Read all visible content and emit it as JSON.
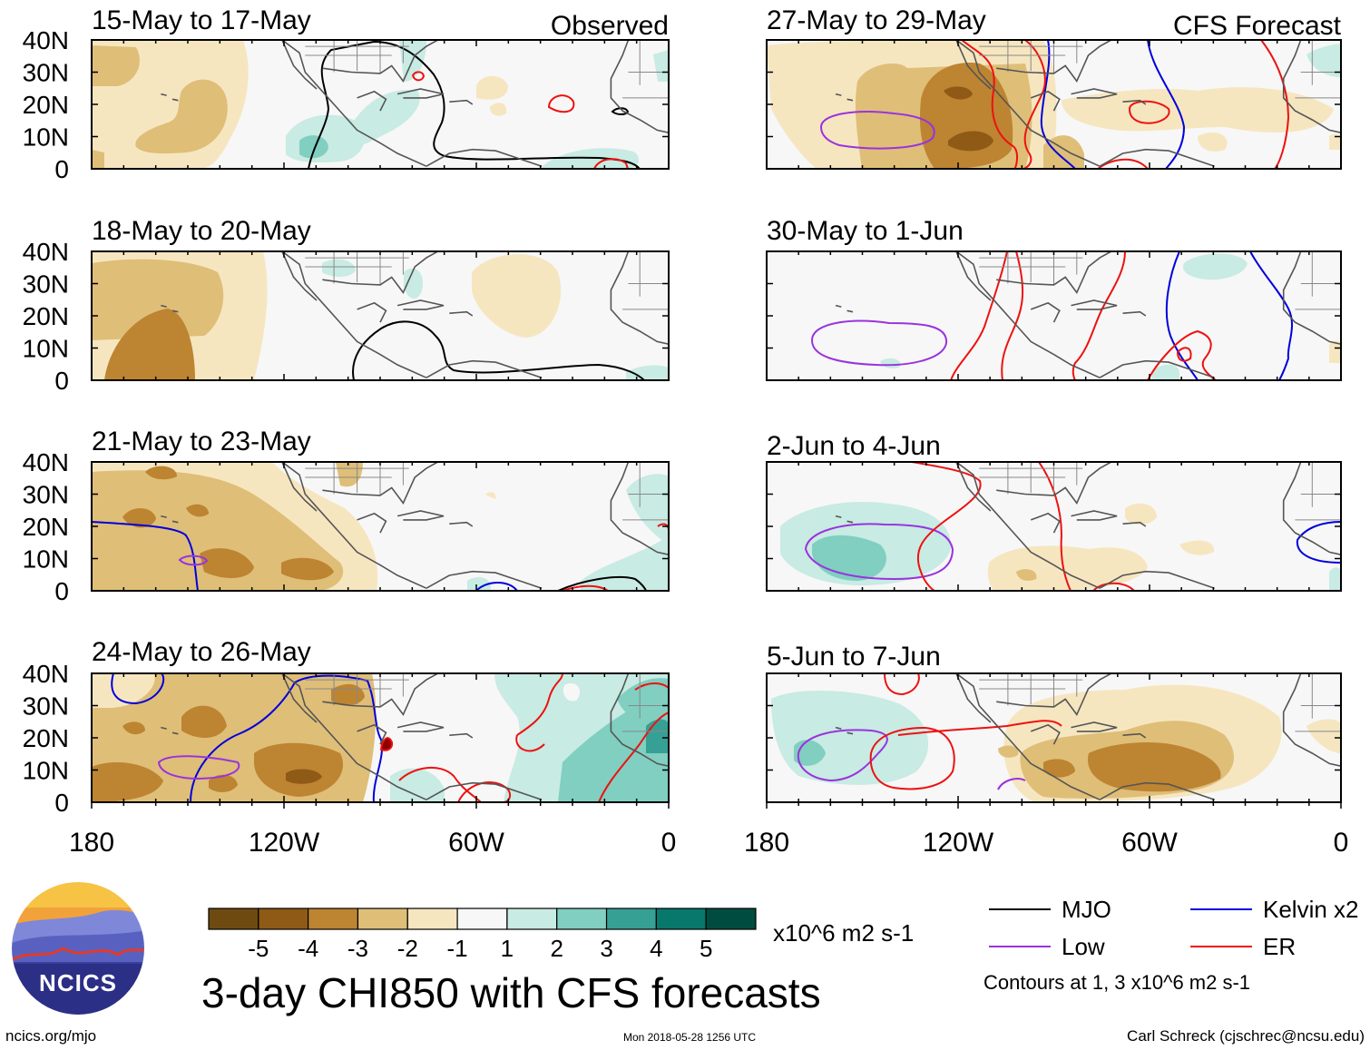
{
  "panels": [
    {
      "id": "p1",
      "period": "15-May to 17-May",
      "tag": "Observed"
    },
    {
      "id": "p2",
      "period": "18-May to 20-May",
      "tag": ""
    },
    {
      "id": "p3",
      "period": "21-May to 23-May",
      "tag": ""
    },
    {
      "id": "p4",
      "period": "24-May to 26-May",
      "tag": ""
    },
    {
      "id": "p5",
      "period": "27-May to 29-May",
      "tag": "CFS Forecast"
    },
    {
      "id": "p6",
      "period": "30-May to 1-Jun",
      "tag": ""
    },
    {
      "id": "p7",
      "period": "2-Jun to 4-Jun",
      "tag": ""
    },
    {
      "id": "p8",
      "period": "5-Jun to 7-Jun",
      "tag": ""
    }
  ],
  "lat_labels": [
    "40N",
    "30N",
    "20N",
    "10N",
    "0"
  ],
  "lon_labels": [
    "180",
    "120W",
    "60W",
    "0"
  ],
  "colorbar": {
    "colors": [
      "#6f4a10",
      "#8e5a16",
      "#bd8432",
      "#dfbe78",
      "#f6e6c0",
      "#f7f7f7",
      "#c8ebe3",
      "#80cfc0",
      "#36a095",
      "#08776c",
      "#014c40"
    ],
    "tick_labels": [
      "-5",
      "-4",
      "-3",
      "-2",
      "-1",
      "1",
      "2",
      "3",
      "4",
      "5"
    ],
    "units": "x10^6 m2 s-1"
  },
  "legend": {
    "items": [
      {
        "label": "MJO",
        "color": "#000000"
      },
      {
        "label": "Kelvin x2",
        "color": "#0000dd"
      },
      {
        "label": "Low",
        "color": "#9a33dd"
      },
      {
        "label": "ER",
        "color": "#ee1111"
      }
    ],
    "contours_note": "Contours at 1, 3 x10^6 m2 s-1"
  },
  "title": "3-day CHI850 with CFS forecasts",
  "logo_text": "NCICS",
  "footer": {
    "left": "ncics.org/mjo",
    "center": "Mon 2018-05-28 1256 UTC",
    "right": "Carl Schreck (cjschrec@ncsu.edu)"
  }
}
